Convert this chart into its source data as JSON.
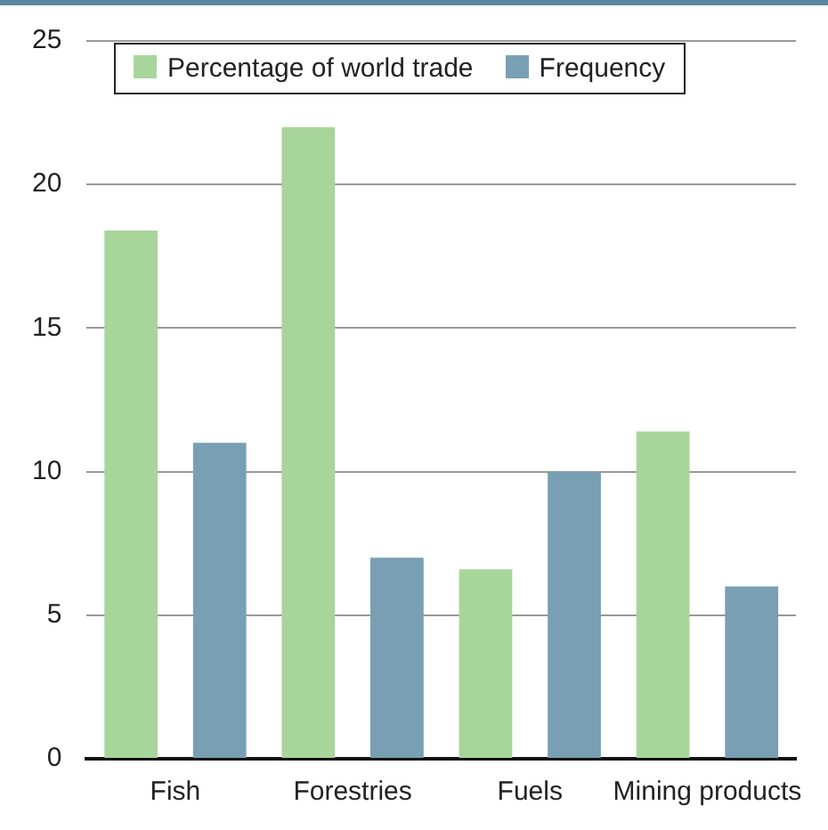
{
  "chart_data": {
    "type": "bar",
    "categories": [
      "Fish",
      "Forestries",
      "Fuels",
      "Mining products"
    ],
    "series": [
      {
        "name": "Percentage of world trade",
        "color": "#a8d59a",
        "values": [
          18.4,
          22,
          6.6,
          11.4
        ]
      },
      {
        "name": "Frequency",
        "color": "#789fb4",
        "values": [
          11,
          7,
          10,
          6
        ]
      }
    ],
    "ylim": [
      0,
      25
    ],
    "yticks": [
      0,
      5,
      10,
      15,
      20,
      25
    ],
    "grid": "y",
    "legend": "top left"
  }
}
